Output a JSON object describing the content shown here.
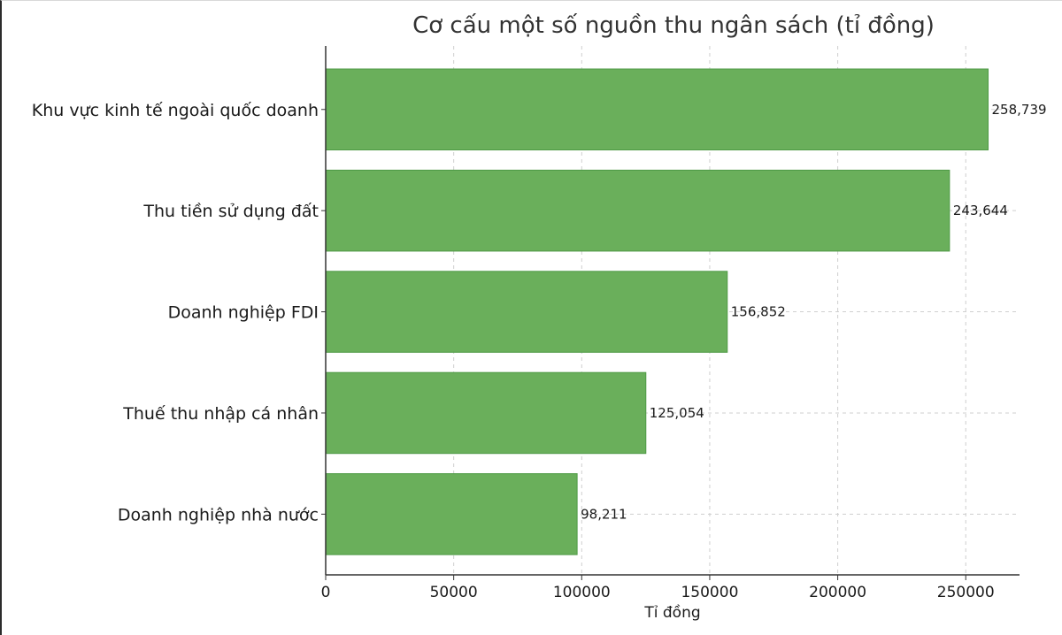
{
  "chart_data": {
    "type": "bar",
    "orientation": "horizontal",
    "title": "Cơ cấu một số nguồn thu ngân sách (tỉ đồng)",
    "xlabel": "Tỉ đồng",
    "ylabel": "",
    "categories": [
      "Khu vực kinh tế ngoài quốc doanh",
      "Thu tiền sử dụng đất",
      "Doanh nghiệp FDI",
      "Thuế thu nhập cá nhân",
      "Doanh nghiệp nhà nước"
    ],
    "values": [
      258739,
      243644,
      156852,
      125054,
      98211
    ],
    "value_labels": [
      "258,739",
      "243,644",
      "156,852",
      "125,054",
      "98,211"
    ],
    "xlim": [
      0,
      271000
    ],
    "x_ticks": [
      0,
      50000,
      100000,
      150000,
      200000,
      250000
    ],
    "x_tick_labels": [
      "0",
      "50000",
      "100000",
      "150000",
      "200000",
      "250000"
    ],
    "grid": true,
    "bar_color": "#6aaf5b",
    "bar_edge_color": "#4e9a45"
  }
}
